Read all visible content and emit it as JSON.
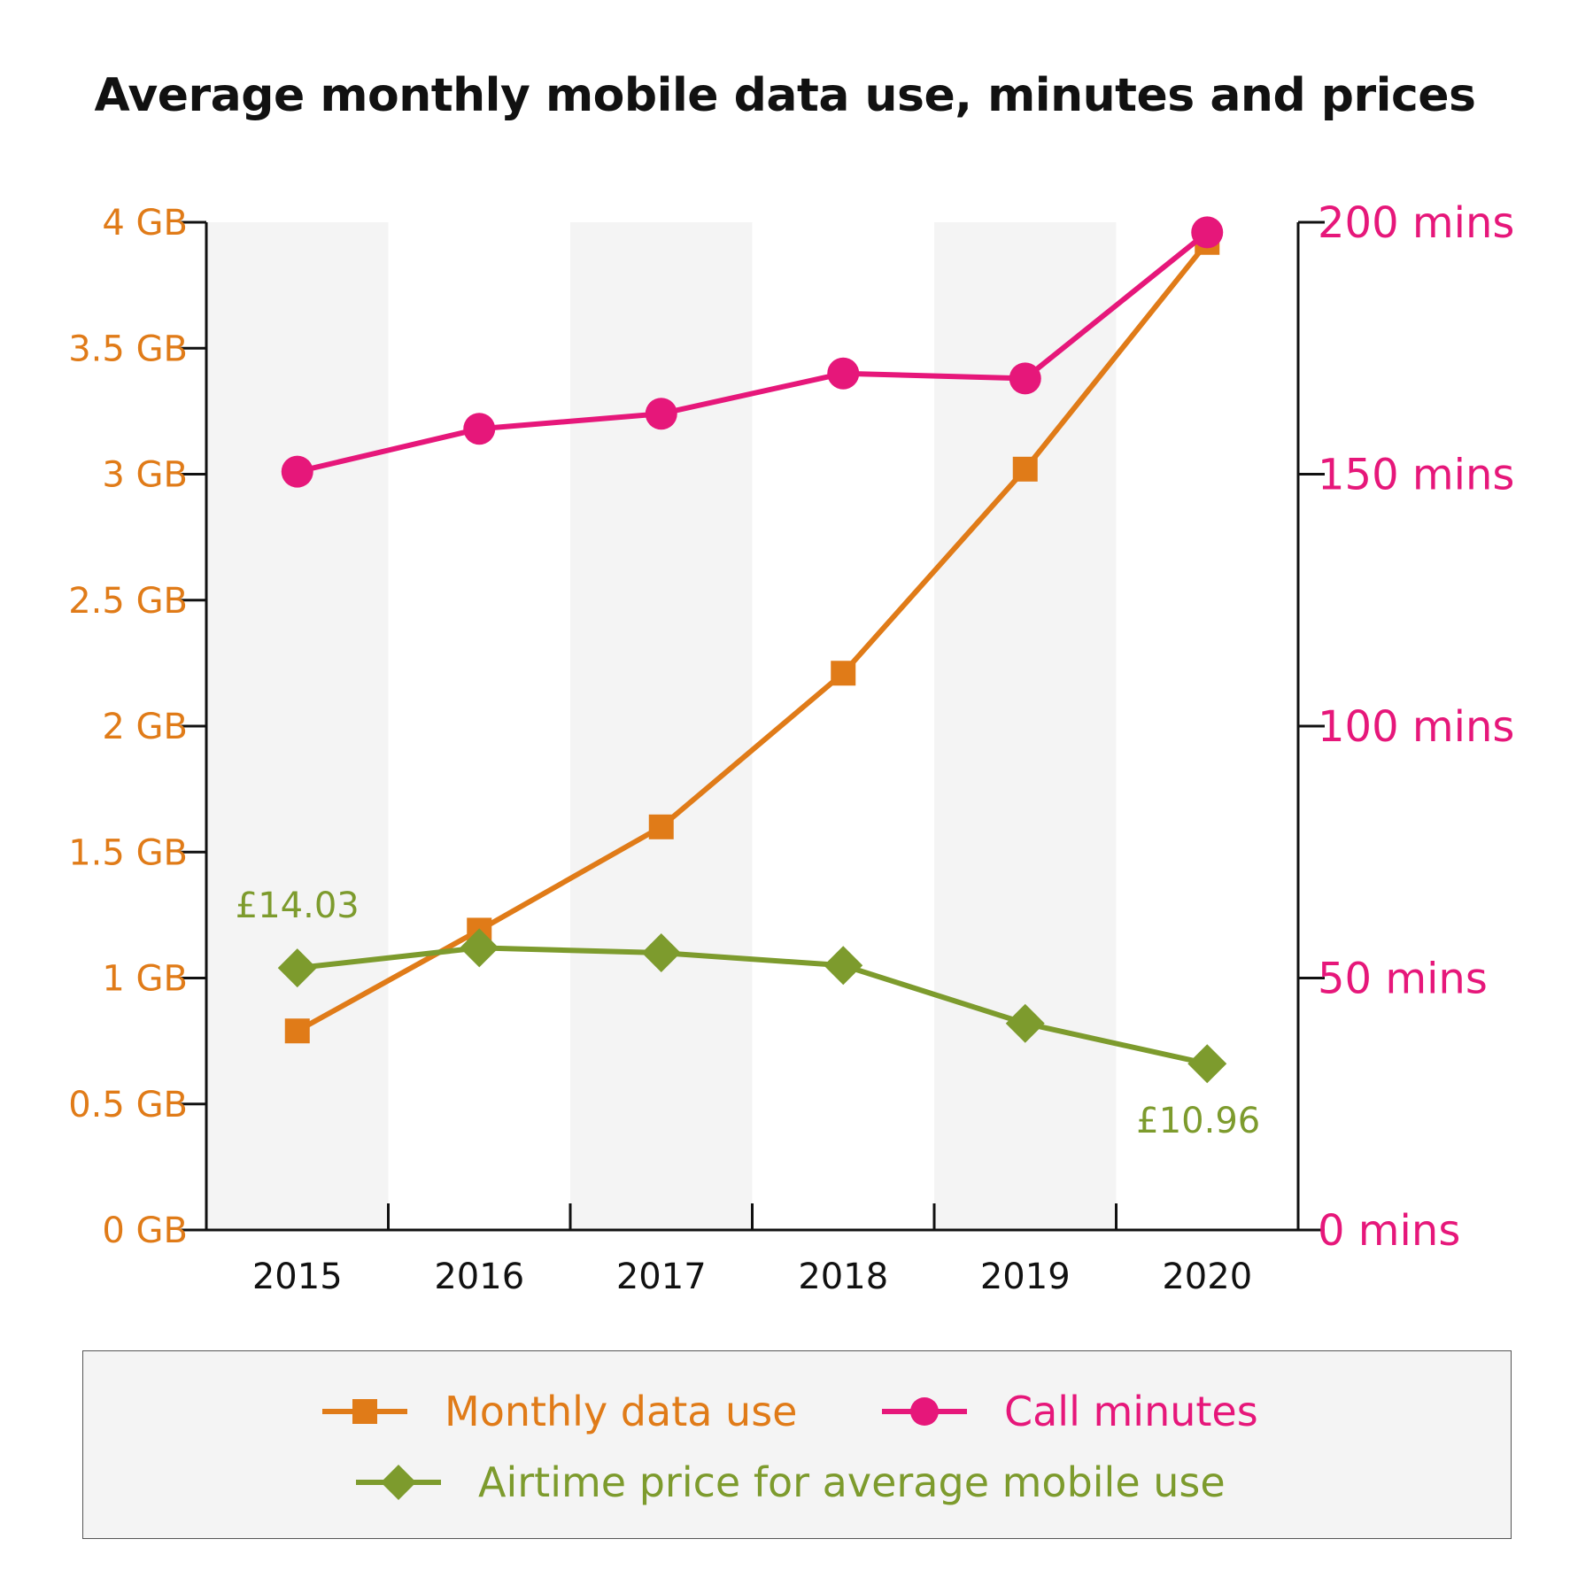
{
  "chart_data": {
    "type": "line",
    "title": "Average monthly mobile data use, minutes and prices",
    "categories": [
      "2015",
      "2016",
      "2017",
      "2018",
      "2019",
      "2020"
    ],
    "left_axis": {
      "ylim": [
        0,
        4
      ],
      "ticks": [
        0,
        0.5,
        1,
        1.5,
        2,
        2.5,
        3,
        3.5,
        4
      ],
      "tick_labels": [
        "0 GB",
        "0.5 GB",
        "1 GB",
        "1.5 GB",
        "2 GB",
        "2.5 GB",
        "3 GB",
        "3.5 GB",
        "4 GB"
      ],
      "color": "#e07b18"
    },
    "right_axis": {
      "ylim": [
        0,
        200
      ],
      "ticks": [
        0,
        50,
        100,
        150,
        200
      ],
      "tick_labels": [
        "0 mins",
        "50 mins",
        "100 mins",
        "150 mins",
        "200 mins"
      ],
      "color": "#e6177a"
    },
    "series": [
      {
        "name": "Monthly data use",
        "axis": "left",
        "marker": "square",
        "color": "#e07b18",
        "values": [
          0.79,
          1.19,
          1.6,
          2.21,
          3.02,
          3.92
        ]
      },
      {
        "name": "Call minutes",
        "axis": "right",
        "marker": "circle",
        "color": "#e6177a",
        "values": [
          150.5,
          159,
          162,
          170,
          169,
          198
        ]
      },
      {
        "name": "Airtime price for average mobile use",
        "axis": "left",
        "marker": "diamond",
        "color": "#7d9b2d",
        "values": [
          1.04,
          1.12,
          1.1,
          1.05,
          0.82,
          0.66
        ]
      }
    ],
    "annotations": [
      {
        "text": "£14.03",
        "series": "Airtime price for average mobile use",
        "category": "2015"
      },
      {
        "text": "£10.96",
        "series": "Airtime price for average mobile use",
        "category": "2020"
      }
    ],
    "grid": false,
    "legend_position": "bottom"
  },
  "legend": {
    "items": [
      {
        "label": "Monthly data use",
        "marker": "square",
        "color": "#e07b18"
      },
      {
        "label": "Call minutes",
        "marker": "circle",
        "color": "#e6177a"
      },
      {
        "label": "Airtime price for average mobile use",
        "marker": "diamond",
        "color": "#7d9b2d"
      }
    ]
  }
}
